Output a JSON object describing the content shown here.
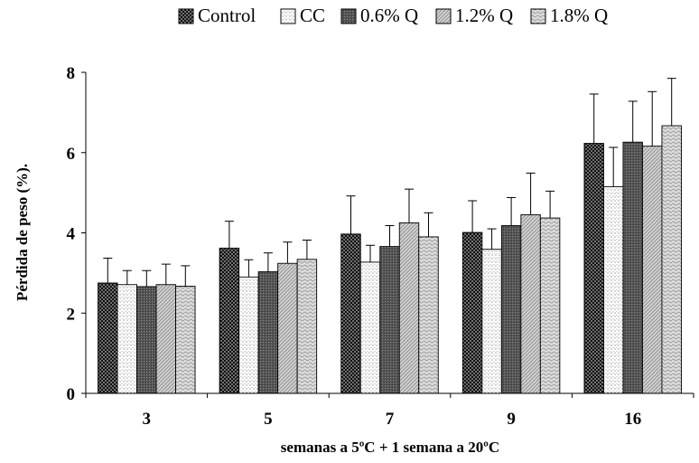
{
  "chart_data": {
    "type": "bar",
    "title": "",
    "xlabel": "semanas a 5ºC + 1 semana a 20ºC",
    "ylabel": "Pérdida de peso (%).",
    "categories": [
      "3",
      "5",
      "7",
      "9",
      "16"
    ],
    "ylim": [
      0,
      8
    ],
    "yticks": [
      "0",
      "2",
      "4",
      "6",
      "8"
    ],
    "grid": false,
    "legend_position": "top",
    "series": [
      {
        "name": "Control",
        "pattern": "dense-dots-dark",
        "values": [
          2.75,
          3.62,
          3.97,
          4.01,
          6.23
        ],
        "errors": [
          0.62,
          0.67,
          0.95,
          0.79,
          1.23
        ]
      },
      {
        "name": "CC",
        "pattern": "sparse-dots-white",
        "values": [
          2.71,
          2.9,
          3.27,
          3.59,
          5.15
        ],
        "errors": [
          0.35,
          0.43,
          0.42,
          0.51,
          0.98
        ]
      },
      {
        "name": "0.6% Q",
        "pattern": "dark-grey-fine",
        "values": [
          2.66,
          3.03,
          3.66,
          4.18,
          6.26
        ],
        "errors": [
          0.4,
          0.47,
          0.52,
          0.7,
          1.02
        ]
      },
      {
        "name": "1.2% Q",
        "pattern": "light-grey-diagonal",
        "values": [
          2.71,
          3.24,
          4.25,
          4.45,
          6.16
        ],
        "errors": [
          0.51,
          0.53,
          0.84,
          1.04,
          1.36
        ]
      },
      {
        "name": "1.8% Q",
        "pattern": "light-grey-wavy",
        "values": [
          2.67,
          3.34,
          3.9,
          4.37,
          6.67
        ],
        "errors": [
          0.51,
          0.48,
          0.6,
          0.67,
          1.18
        ]
      }
    ]
  }
}
